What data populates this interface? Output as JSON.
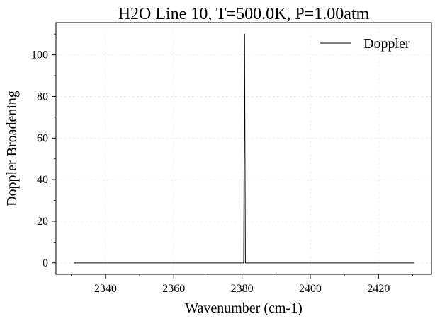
{
  "chart_data": {
    "type": "line",
    "title": "H2O Line 10, T=500.0K, P=1.00atm",
    "xlabel": "Wavenumber (cm-1)",
    "ylabel": "Doppler Broadening",
    "xlim": [
      2325.5,
      2435.5
    ],
    "ylim": [
      -5.5,
      115.5
    ],
    "xticks": [
      2340,
      2360,
      2380,
      2400,
      2420
    ],
    "yticks": [
      0,
      20,
      40,
      60,
      80,
      100
    ],
    "xminor_step": 10,
    "yminor_step": 10,
    "grid": true,
    "legend_position": "top-right",
    "series": [
      {
        "name": "Doppler",
        "color": "#000000",
        "x": [
          2330.9,
          2380.5,
          2380.75,
          2381.0,
          2430.4
        ],
        "y": [
          0,
          0,
          110.2,
          0,
          0
        ]
      }
    ]
  }
}
